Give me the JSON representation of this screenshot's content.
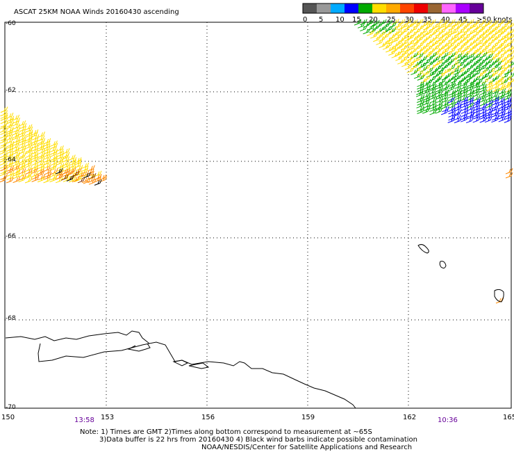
{
  "title": "ASCAT 25KM NOAA Winds 20160430 ascending",
  "legend": {
    "labels": [
      "0",
      "5",
      "10",
      "15",
      "20",
      "25",
      "30",
      "35",
      "40",
      "45",
      ">50 knots"
    ],
    "colors": [
      "#555555",
      "#999999",
      "#00aaff",
      "#0000ff",
      "#00aa00",
      "#ffdd00",
      "#ffaa00",
      "#ff4400",
      "#ee0000",
      "#996633",
      "#ff66ff",
      "#aa00ff",
      "#660099"
    ]
  },
  "lat_labels": [
    "-60",
    "-62",
    "-64",
    "-66",
    "-68",
    "-70"
  ],
  "lon_labels": [
    "150",
    "153",
    "156",
    "159",
    "162",
    "165"
  ],
  "times": [
    "13:58",
    "10:36"
  ],
  "notes": {
    "line1": "Note: 1) Times are GMT 2)Times along bottom correspond to measurement at ~65S",
    "line2": "3)Data buffer is 22 hrs from 20160430 4) Black wind barbs indicate possible contamination",
    "line3": "NOAA/NESDIS/Center for Satellite Applications and Research"
  },
  "barb_colors": {
    "c15": "#00aa00",
    "c20": "#ffdd00",
    "c10": "#0000ff",
    "c30": "#ff8800",
    "c40": "#883300",
    "contaminated": "#000000"
  }
}
